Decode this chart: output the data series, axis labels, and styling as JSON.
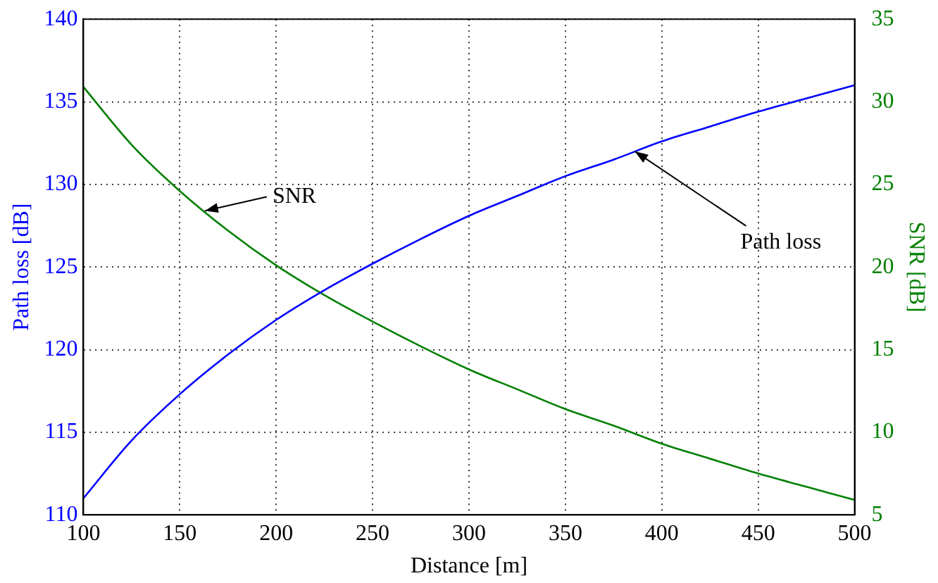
{
  "chart_data": {
    "type": "line",
    "xlabel": "Distance [m]",
    "ylabel": "Path loss [dB]",
    "y2label": "SNR [dB]",
    "x": [
      100,
      125,
      150,
      175,
      200,
      225,
      250,
      275,
      300,
      325,
      350,
      375,
      400,
      425,
      450,
      475,
      500
    ],
    "series": [
      {
        "color": "#0000ff",
        "values": [
          111,
          114.5,
          117.3,
          119.7,
          121.8,
          123.6,
          125.2,
          126.7,
          128.1,
          129.3,
          130.5,
          131.5,
          132.6,
          133.5,
          134.4,
          135.2,
          136.0
        ]
      },
      {
        "color": "#008000",
        "axis": "y2",
        "values": [
          30.9,
          27.4,
          24.6,
          22.2,
          20.1,
          18.3,
          16.7,
          15.2,
          13.8,
          12.6,
          11.4,
          10.4,
          9.3,
          8.4,
          7.5,
          6.7,
          5.9
        ]
      }
    ],
    "xlim": [
      100,
      500
    ],
    "xticks": [
      100,
      150,
      200,
      250,
      300,
      350,
      400,
      450,
      500
    ],
    "ylim": [
      110,
      140
    ],
    "yticks": [
      110,
      115,
      120,
      125,
      130,
      135,
      140
    ],
    "y2lim": [
      5,
      35
    ],
    "y2ticks": [
      5,
      10,
      15,
      20,
      25,
      30,
      35
    ],
    "annotations": [
      {
        "text": "SNR",
        "x": 163,
        "y": 128.4
      },
      {
        "text": "Path loss",
        "x": 386,
        "y": 132.0
      }
    ],
    "grid": true,
    "legend": false,
    "marker": "none",
    "line_style": "solid"
  }
}
